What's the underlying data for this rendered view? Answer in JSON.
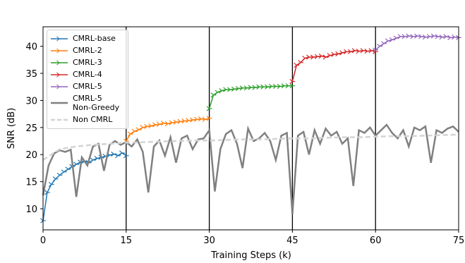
{
  "chart_data": {
    "type": "line",
    "xlabel": "Training Steps (k)",
    "ylabel": "SNR (dB)",
    "xlim": [
      0,
      75
    ],
    "ylim": [
      6.1,
      43.6
    ],
    "xticks": [
      0,
      15,
      30,
      45,
      60,
      75
    ],
    "yticks": [
      10,
      15,
      20,
      25,
      30,
      35,
      40
    ],
    "stage_lines": true,
    "legend": "upper left",
    "series": [
      {
        "name": "CMRL-base",
        "color": "#1f77b4",
        "marker": "tri_right",
        "linestyle": "solid",
        "x": [
          0,
          0.75,
          1.5,
          2.25,
          3,
          3.75,
          4.5,
          5.25,
          6,
          6.75,
          7.5,
          8.25,
          9,
          9.75,
          10.5,
          11.25,
          12,
          12.75,
          13.5,
          14.25,
          15
        ],
        "values": [
          7.8,
          13,
          14.5,
          15.5,
          16.2,
          16.8,
          17.3,
          17.8,
          18.2,
          18.6,
          18.8,
          18.5,
          19,
          19.3,
          19.5,
          19.7,
          19.9,
          20.1,
          19.8,
          20.3,
          19.8
        ]
      },
      {
        "name": "CMRL-2",
        "color": "#ff7f0e",
        "marker": "tri_right",
        "linestyle": "solid",
        "x": [
          15,
          15.75,
          16.5,
          17.25,
          18,
          18.75,
          19.5,
          20.25,
          21,
          21.75,
          22.5,
          23.25,
          24,
          24.75,
          25.5,
          26.25,
          27,
          27.75,
          28.5,
          29.25,
          30
        ],
        "values": [
          22.5,
          23.8,
          24.3,
          24.6,
          25,
          25.2,
          25.3,
          25.5,
          25.6,
          25.8,
          25.7,
          25.9,
          26,
          26.1,
          26.2,
          26.3,
          26.4,
          26.5,
          26.6,
          26.5,
          26.7
        ]
      },
      {
        "name": "CMRL-3",
        "color": "#2ca02c",
        "marker": "tri_right",
        "linestyle": "solid",
        "x": [
          30,
          30.75,
          31.5,
          32.25,
          33,
          33.75,
          34.5,
          35.25,
          36,
          36.75,
          37.5,
          38.25,
          39,
          39.75,
          40.5,
          41.25,
          42,
          42.75,
          43.5,
          44.25,
          45
        ],
        "values": [
          28.5,
          31,
          31.5,
          31.8,
          32,
          32,
          32.1,
          32.2,
          32.3,
          32.3,
          32.4,
          32.4,
          32.5,
          32.5,
          32.5,
          32.6,
          32.6,
          32.6,
          32.7,
          32.7,
          32.7
        ]
      },
      {
        "name": "CMRL-4",
        "color": "#d62728",
        "marker": "tri_right",
        "linestyle": "solid",
        "x": [
          45,
          45.75,
          46.5,
          47.25,
          48,
          48.75,
          49.5,
          50.25,
          51,
          51.75,
          52.5,
          53.25,
          54,
          54.75,
          55.5,
          56.25,
          57,
          57.75,
          58.5,
          59.25,
          60
        ],
        "values": [
          33.5,
          36.5,
          37,
          37.8,
          38,
          38,
          38.1,
          38.2,
          38,
          38.3,
          38.5,
          38.6,
          38.8,
          39,
          39,
          39.2,
          39.1,
          39.2,
          39.1,
          39.2,
          39
        ]
      },
      {
        "name": "CMRL-5",
        "color": "#9467bd",
        "marker": "tri_right",
        "linestyle": "solid",
        "x": [
          60,
          60.75,
          61.5,
          62.25,
          63,
          63.75,
          64.5,
          65.25,
          66,
          66.75,
          67.5,
          68.25,
          69,
          69.75,
          70.5,
          71.25,
          72,
          72.75,
          73.5,
          74.25,
          75
        ],
        "values": [
          39.3,
          40,
          40.5,
          41,
          41.2,
          41.5,
          41.8,
          41.8,
          41.9,
          41.8,
          41.9,
          41.8,
          41.7,
          41.8,
          41.9,
          41.8,
          41.7,
          41.8,
          41.6,
          41.7,
          41.6
        ]
      },
      {
        "name": "CMRL-5\nNon-Greedy",
        "color": "#808080",
        "linestyle": "solid",
        "x": [
          0,
          1,
          2,
          3,
          4,
          5,
          6,
          7,
          8,
          9,
          10,
          11,
          12,
          13,
          14,
          15,
          16,
          17,
          18,
          19,
          20,
          21,
          22,
          23,
          24,
          25,
          26,
          27,
          28,
          29,
          30,
          31,
          32,
          33,
          34,
          35,
          36,
          37,
          38,
          39,
          40,
          41,
          42,
          43,
          44,
          45,
          46,
          47,
          48,
          49,
          50,
          51,
          52,
          53,
          54,
          55,
          56,
          57,
          58,
          59,
          60,
          61,
          62,
          63,
          64,
          65,
          66,
          67,
          68,
          69,
          70,
          71,
          72,
          73,
          74,
          75
        ],
        "values": [
          12.5,
          18,
          20.2,
          20.8,
          20.5,
          20.9,
          12.2,
          19.5,
          18,
          21.5,
          22,
          17,
          21.8,
          22.5,
          21.8,
          22.3,
          21.5,
          22.8,
          20.5,
          13,
          21.5,
          22.6,
          19.8,
          23.2,
          18.5,
          23,
          23.5,
          21,
          22.8,
          23,
          24.5,
          13.2,
          21,
          23.8,
          24.5,
          22,
          17.5,
          24.8,
          22.5,
          23,
          24,
          22.5,
          19,
          23.5,
          24,
          9,
          23.5,
          24.2,
          20,
          24.5,
          22,
          24.8,
          23.5,
          24.2,
          22,
          23,
          14.2,
          24.5,
          24,
          25,
          23.5,
          24.5,
          25.5,
          24,
          23,
          24.5,
          21.5,
          25,
          24.5,
          25.2,
          18.5,
          24.5,
          24,
          24.8,
          25.2,
          24.2
        ]
      },
      {
        "name": "Non CMRL",
        "color": "#d3d3d3",
        "linestyle": "dashed",
        "x": [
          0,
          3,
          6,
          9,
          12,
          15,
          18,
          21,
          24,
          27,
          30,
          33,
          36,
          39,
          42,
          45,
          48,
          51,
          54,
          57,
          60,
          63,
          66,
          69,
          72,
          75
        ],
        "values": [
          19,
          21,
          21.5,
          21.8,
          22,
          22.2,
          22.3,
          22.4,
          22.5,
          22.6,
          22.6,
          22.7,
          22.8,
          22.8,
          22.9,
          23,
          23,
          23.1,
          23.2,
          23.2,
          23.3,
          23.4,
          23.4,
          23.5,
          23.6,
          23.7
        ]
      }
    ]
  }
}
